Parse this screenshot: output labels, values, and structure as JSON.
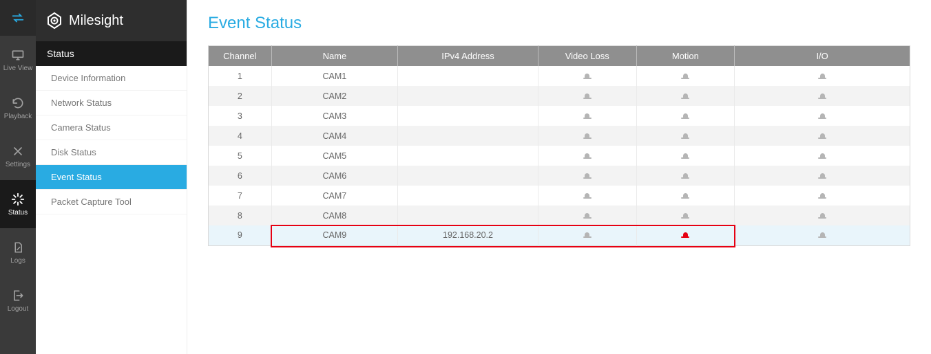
{
  "brand": {
    "name": "Milesight"
  },
  "rail": {
    "items": [
      {
        "key": "connect",
        "label": "",
        "icon": "swap"
      },
      {
        "key": "liveview",
        "label": "Live View",
        "icon": "monitor"
      },
      {
        "key": "playback",
        "label": "Playback",
        "icon": "refresh"
      },
      {
        "key": "settings",
        "label": "Settings",
        "icon": "tools"
      },
      {
        "key": "status",
        "label": "Status",
        "icon": "burst",
        "active": true
      },
      {
        "key": "logs",
        "label": "Logs",
        "icon": "doc"
      },
      {
        "key": "logout",
        "label": "Logout",
        "icon": "exit"
      }
    ]
  },
  "sidebar": {
    "section": "Status",
    "items": [
      {
        "label": "Device Information"
      },
      {
        "label": "Network Status"
      },
      {
        "label": "Camera Status"
      },
      {
        "label": "Disk Status"
      },
      {
        "label": "Event Status",
        "active": true
      },
      {
        "label": "Packet Capture Tool"
      }
    ]
  },
  "page": {
    "title": "Event Status"
  },
  "table": {
    "columns": [
      {
        "key": "channel",
        "label": "Channel",
        "width": "9%"
      },
      {
        "key": "name",
        "label": "Name",
        "width": "18%"
      },
      {
        "key": "ip",
        "label": "IPv4 Address",
        "width": "20%"
      },
      {
        "key": "videoloss",
        "label": "Video Loss",
        "width": "14%"
      },
      {
        "key": "motion",
        "label": "Motion",
        "width": "14%"
      },
      {
        "key": "io",
        "label": "I/O",
        "width": "25%"
      }
    ],
    "rows": [
      {
        "channel": "1",
        "name": "CAM1",
        "ip": "",
        "videoloss": "gray",
        "motion": "gray",
        "io": "gray"
      },
      {
        "channel": "2",
        "name": "CAM2",
        "ip": "",
        "videoloss": "gray",
        "motion": "gray",
        "io": "gray"
      },
      {
        "channel": "3",
        "name": "CAM3",
        "ip": "",
        "videoloss": "gray",
        "motion": "gray",
        "io": "gray"
      },
      {
        "channel": "4",
        "name": "CAM4",
        "ip": "",
        "videoloss": "gray",
        "motion": "gray",
        "io": "gray"
      },
      {
        "channel": "5",
        "name": "CAM5",
        "ip": "",
        "videoloss": "gray",
        "motion": "gray",
        "io": "gray"
      },
      {
        "channel": "6",
        "name": "CAM6",
        "ip": "",
        "videoloss": "gray",
        "motion": "gray",
        "io": "gray"
      },
      {
        "channel": "7",
        "name": "CAM7",
        "ip": "",
        "videoloss": "gray",
        "motion": "gray",
        "io": "gray"
      },
      {
        "channel": "8",
        "name": "CAM8",
        "ip": "",
        "videoloss": "gray",
        "motion": "gray",
        "io": "gray"
      },
      {
        "channel": "9",
        "name": "CAM9",
        "ip": "192.168.20.2",
        "videoloss": "gray",
        "motion": "red",
        "io": "gray",
        "highlight": true,
        "boxed_cols": [
          "name",
          "ip",
          "videoloss",
          "motion"
        ]
      }
    ]
  },
  "colors": {
    "accent": "#29abe2",
    "rail_bg": "#3a3a3a",
    "rail_active": "#1a1a1a",
    "header_bg": "#8f8f8f",
    "row_alt": "#f3f3f3",
    "highlight_row": "#e9f5fb",
    "red": "#e60012",
    "icon_gray": "#b5b5b5"
  }
}
